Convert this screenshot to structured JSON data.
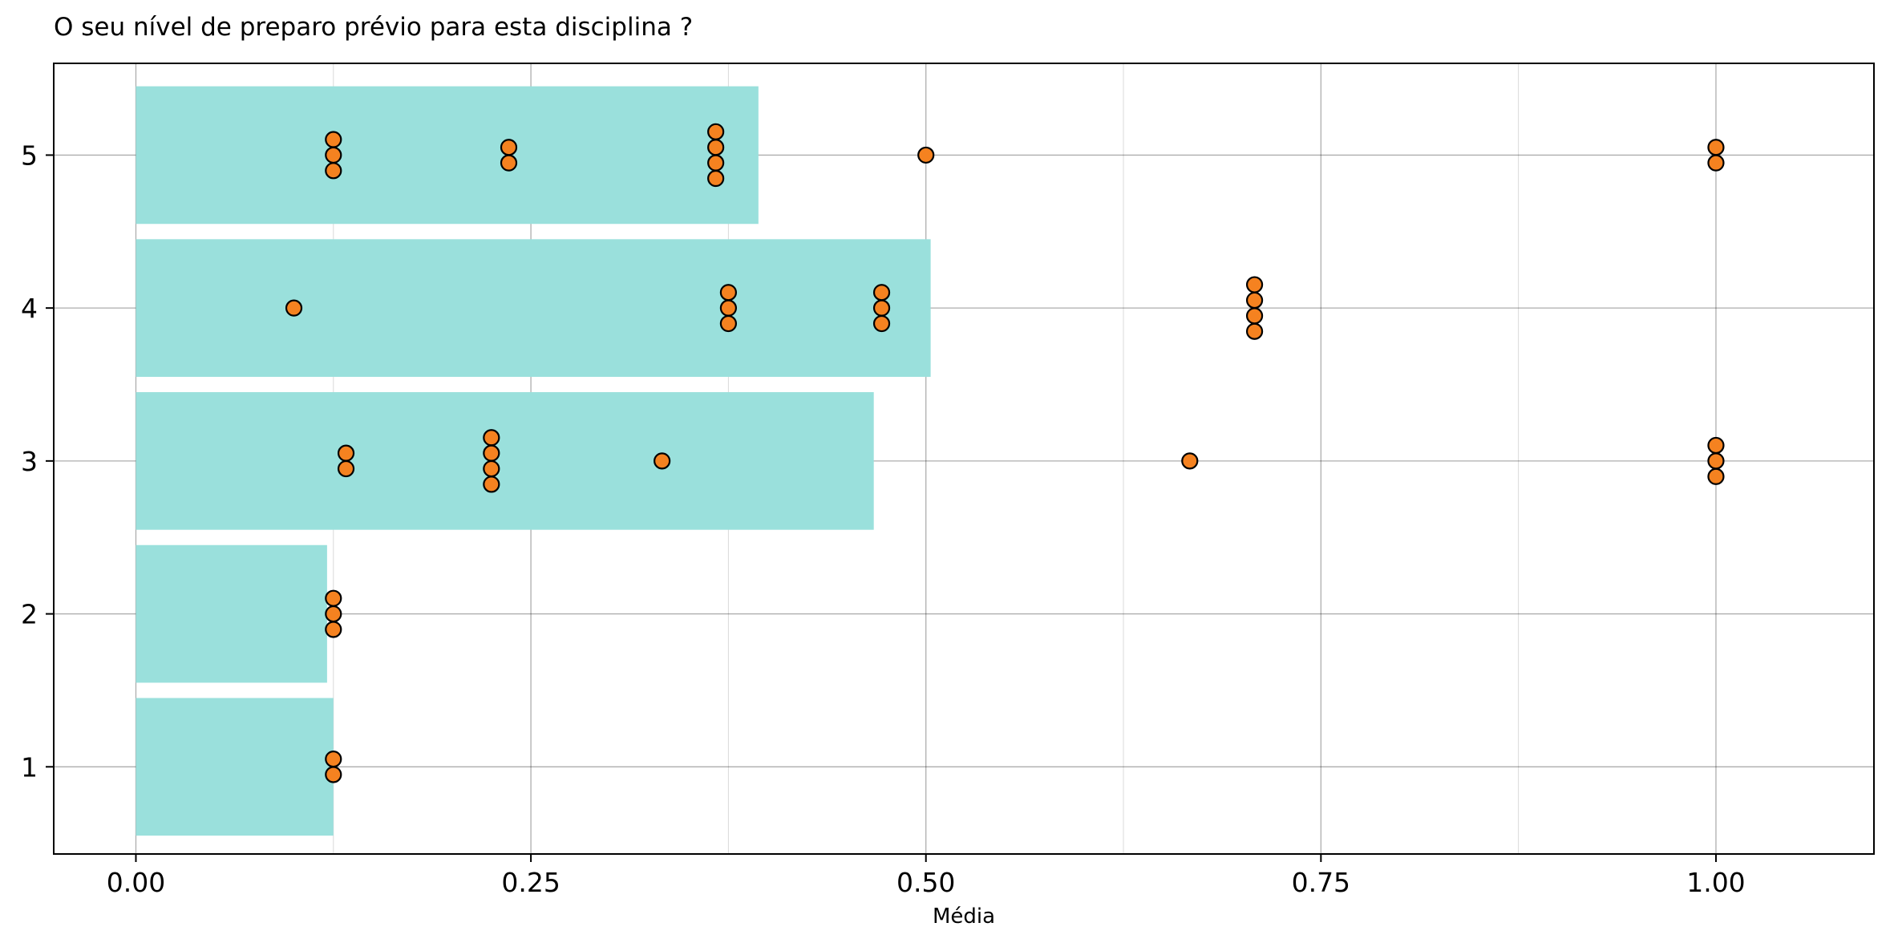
{
  "chart_data": {
    "type": "bar",
    "orientation": "horizontal",
    "title": "O seu nível de preparo prévio para esta disciplina ?",
    "xlabel": "Média",
    "ylabel": "",
    "xlim": [
      -0.052,
      1.1
    ],
    "ylim": [
      0.43,
      5.6
    ],
    "x_ticks": [
      "0.00",
      "0.25",
      "0.50",
      "0.75",
      "1.00"
    ],
    "x_minor_grid": [
      0.125,
      0.375,
      0.625,
      0.875
    ],
    "y_ticks": [
      "1",
      "2",
      "3",
      "4",
      "5"
    ],
    "grid": true,
    "bar_color": "#9ae0dc",
    "point_color": "#f58220",
    "point_edge_color": "#000000",
    "bars": [
      {
        "category": 1,
        "value": 0.125
      },
      {
        "category": 2,
        "value": 0.121
      },
      {
        "category": 3,
        "value": 0.467
      },
      {
        "category": 4,
        "value": 0.503
      },
      {
        "category": 5,
        "value": 0.394
      }
    ],
    "points": [
      {
        "category": 5,
        "x": 0.125,
        "count": 3
      },
      {
        "category": 5,
        "x": 0.236,
        "count": 2
      },
      {
        "category": 5,
        "x": 0.367,
        "count": 4
      },
      {
        "category": 5,
        "x": 0.5,
        "count": 1
      },
      {
        "category": 5,
        "x": 1.0,
        "count": 2
      },
      {
        "category": 4,
        "x": 0.1,
        "count": 1
      },
      {
        "category": 4,
        "x": 0.375,
        "count": 3
      },
      {
        "category": 4,
        "x": 0.472,
        "count": 3
      },
      {
        "category": 4,
        "x": 0.708,
        "count": 4
      },
      {
        "category": 3,
        "x": 0.133,
        "count": 2
      },
      {
        "category": 3,
        "x": 0.225,
        "count": 4
      },
      {
        "category": 3,
        "x": 0.333,
        "count": 1
      },
      {
        "category": 3,
        "x": 0.667,
        "count": 1
      },
      {
        "category": 3,
        "x": 1.0,
        "count": 3
      },
      {
        "category": 2,
        "x": 0.125,
        "count": 3
      },
      {
        "category": 1,
        "x": 0.125,
        "count": 2
      }
    ]
  }
}
